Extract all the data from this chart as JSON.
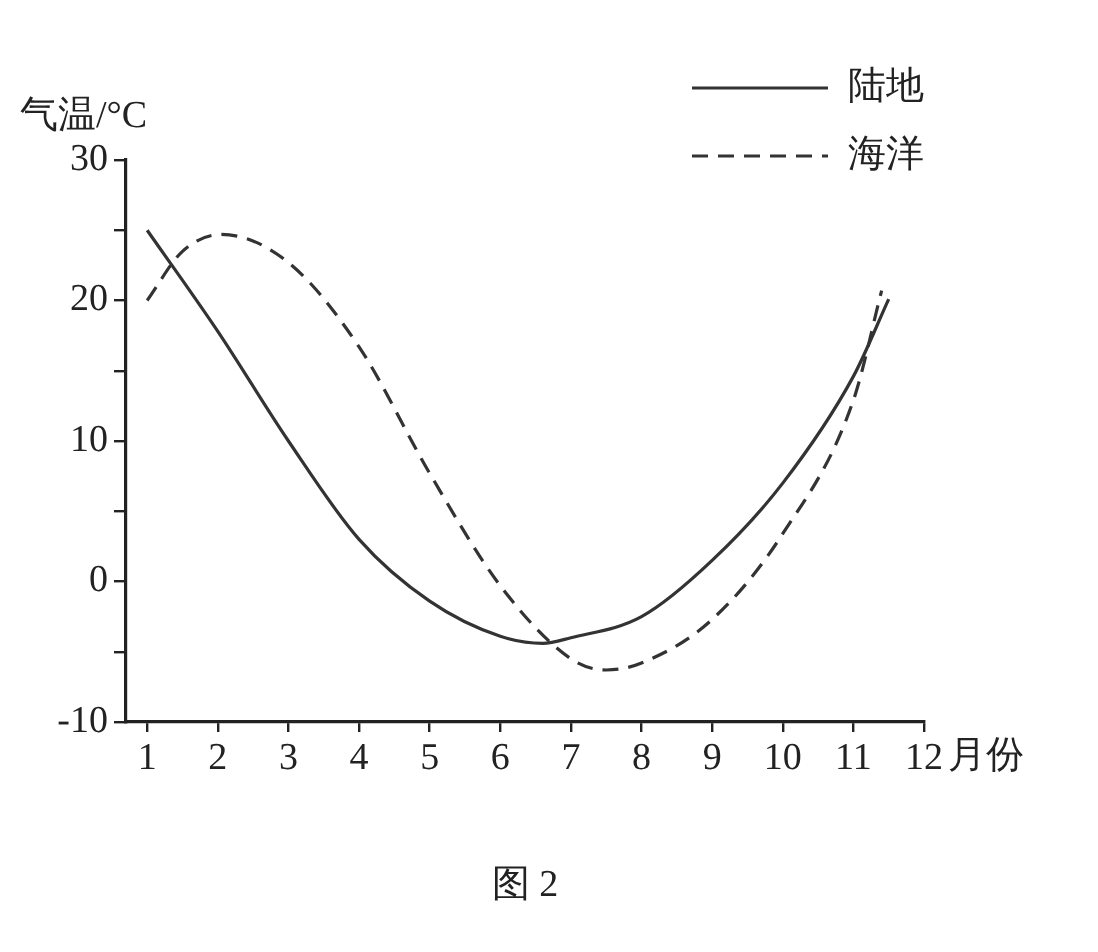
{
  "chart_data": {
    "type": "line",
    "ylabel": "气温/°C",
    "xlabel": "月份",
    "annotations": [
      "图 2"
    ],
    "xlim": [
      0.7,
      12
    ],
    "xticks": [
      1,
      2,
      3,
      4,
      5,
      6,
      7,
      8,
      9,
      10,
      11,
      12
    ],
    "ylim": [
      -10,
      30
    ],
    "yticks": [
      -10,
      {
        "value": -5,
        "label": null
      },
      0,
      {
        "value": 5,
        "label": null
      },
      10,
      {
        "value": 15,
        "label": null
      },
      20,
      {
        "value": 25,
        "label": null
      },
      30
    ],
    "grid": false,
    "legend": "top right",
    "marker": "none",
    "series": [
      {
        "name": "陆地",
        "color": "#333333",
        "line_style": "solid",
        "x": [
          1,
          2,
          3,
          4,
          5,
          6,
          6.6,
          7,
          8,
          9,
          10,
          11,
          11.5
        ],
        "values": [
          25,
          17.8,
          10,
          3,
          -1.4,
          -3.9,
          -4.4,
          -4,
          -2.5,
          1.5,
          7,
          14.6,
          20.1
        ]
      },
      {
        "name": "海洋",
        "color": "#333333",
        "line_style": "dashed",
        "x": [
          1,
          1.5,
          2.05,
          3,
          4,
          5,
          6,
          7,
          7.5,
          8,
          9,
          10,
          11,
          11.4
        ],
        "values": [
          20,
          23.5,
          24.7,
          22.7,
          16.7,
          7.7,
          -0.3,
          -5.5,
          -6.3,
          -5.8,
          -2.7,
          3.4,
          12.9,
          20.7
        ]
      }
    ]
  }
}
